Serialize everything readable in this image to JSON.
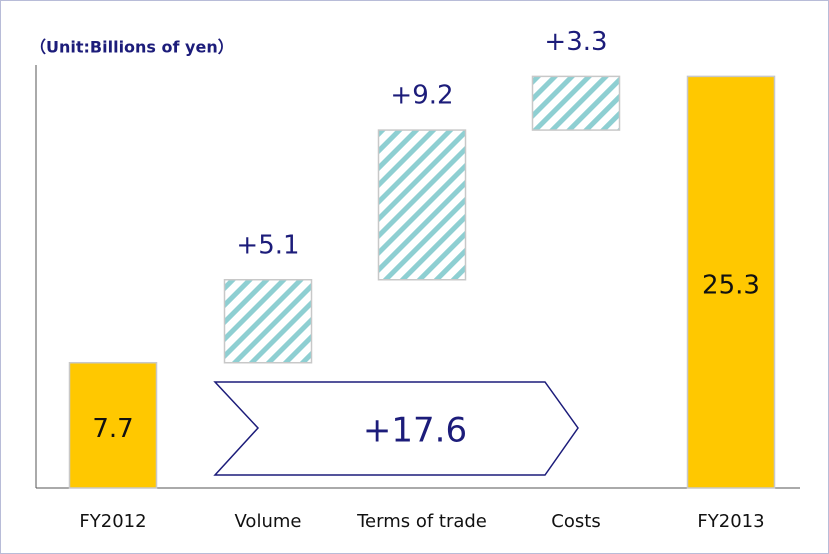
{
  "chart_data": {
    "type": "waterfall",
    "subtitle": "（Unit:Billions of yen）",
    "categories": [
      "FY2012",
      "Volume",
      "Terms of trade",
      "Costs",
      "FY2013"
    ],
    "values": [
      7.7,
      5.1,
      9.2,
      3.3,
      25.3
    ],
    "value_labels": [
      "7.7",
      "+5.1",
      "+9.2",
      "+3.3",
      "25.3"
    ],
    "total_color": "#ffc800",
    "delta_color": "#8ecfd2",
    "annotation": "+17.6",
    "ylim": [
      0,
      26
    ]
  }
}
